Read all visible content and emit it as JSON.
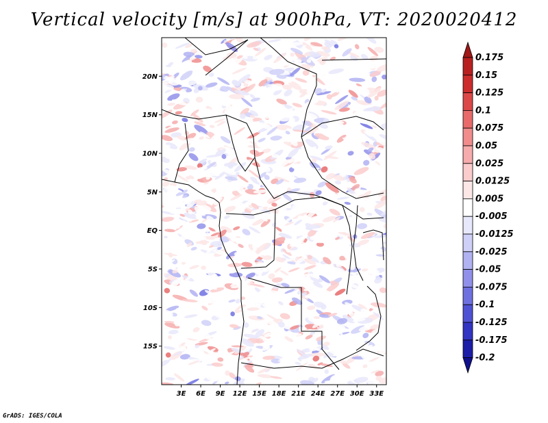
{
  "title": "Vertical velocity [m/s] at 900hPa, VT: 2020020412",
  "credit": "GrADS: IGES/COLA",
  "map": {
    "lon_range": [
      0,
      34.5
    ],
    "lat_range": [
      -20,
      25
    ],
    "lon_ticks": [
      "3E",
      "6E",
      "9E",
      "12E",
      "15E",
      "18E",
      "21E",
      "24E",
      "27E",
      "30E",
      "33E"
    ],
    "lat_ticks": [
      "20N",
      "15N",
      "10N",
      "5N",
      "EQ",
      "5S",
      "10S",
      "15S"
    ]
  },
  "colorbar": {
    "labels": [
      "0.175",
      "0.15",
      "0.125",
      "0.1",
      "0.075",
      "0.05",
      "0.025",
      "0.0125",
      "0.005",
      "-0.005",
      "-0.0125",
      "-0.025",
      "-0.05",
      "-0.075",
      "-0.1",
      "-0.125",
      "-0.175",
      "-0.2"
    ],
    "colors": [
      "#a01818",
      "#b82020",
      "#cc2c2c",
      "#dc4848",
      "#e86a6a",
      "#f08c8c",
      "#f6acac",
      "#fbcccc",
      "#fde6e6",
      "#ffffff",
      "#e8e8fc",
      "#cfd0f8",
      "#b0b2f2",
      "#9090ea",
      "#6f70e0",
      "#5052d4",
      "#3234c2",
      "#1c1ea8",
      "#10108c"
    ]
  }
}
